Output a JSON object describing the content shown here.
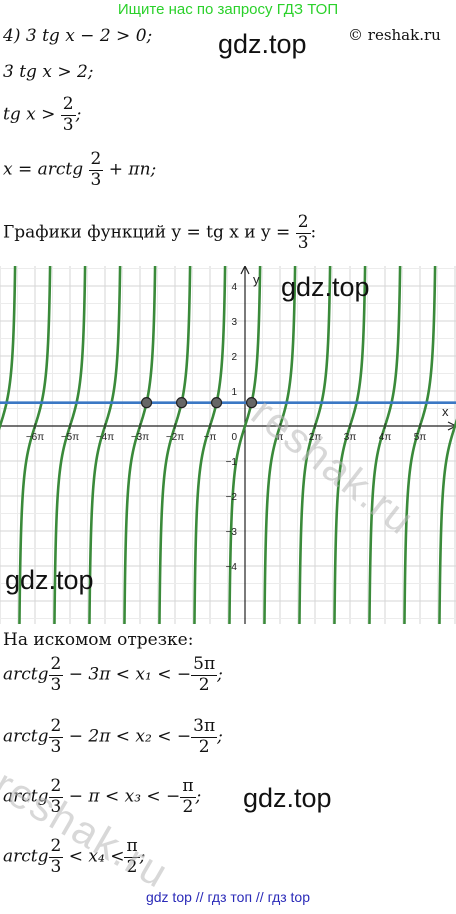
{
  "banner": "Ищите нас по запросу ГДЗ ТОП",
  "watermark": "gdz.top",
  "copyright": "© reshak.ru",
  "reshak_wm": "reshak.ru",
  "lines": {
    "l1": "4) 3 tg x − 2 > 0;",
    "l2": "3 tg x > 2;",
    "l3_a": "tg x >",
    "l4_a": "x = arctg",
    "l4_b": "+ πn;",
    "graph_caption_a": "Графики функций y = tg x и y =",
    "interval_caption": "На искомом отрезке:"
  },
  "fractions": {
    "two_thirds_num": "2",
    "two_thirds_den": "3",
    "five_pi_num": "5π",
    "three_pi_num": "3π",
    "pi_num": "π",
    "two_den": "2"
  },
  "inequalities": [
    {
      "left": "arctg",
      "mid": "− 3π < x₁ < −",
      "num": "5π",
      "den": "2",
      "end": ";"
    },
    {
      "left": "arctg",
      "mid": "− 2π < x₂ < −",
      "num": "3π",
      "den": "2",
      "end": ";"
    },
    {
      "left": "arctg",
      "mid": "− π < x₃ < −",
      "num": "π",
      "den": "2",
      "end": ";"
    },
    {
      "left": "arctg",
      "mid": "< x₄ <",
      "num": "π",
      "den": "2",
      "end": ";"
    }
  ],
  "graph": {
    "axis_x": "x",
    "axis_y": "y",
    "origin": "0",
    "x_ticks": [
      "−6π",
      "−5π",
      "−4π",
      "−3π",
      "−2π",
      "−π",
      "π",
      "2π",
      "3π",
      "4π",
      "5π"
    ],
    "y_ticks_pos": [
      "4",
      "3",
      "2",
      "1"
    ],
    "y_ticks_neg": [
      "−1",
      "−2",
      "−3",
      "−4"
    ],
    "tan_color": "#3a8a3a",
    "line_color": "#3b78c4",
    "line_value": 0.667,
    "marked_points": 4
  },
  "footer": "gdz top  //  гдз топ  //  гдз top"
}
